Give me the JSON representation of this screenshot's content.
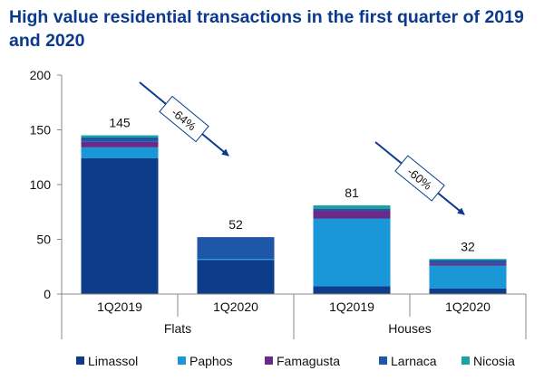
{
  "chart_data": {
    "type": "bar",
    "stacked": true,
    "title": "High value residential transactions in the first quarter of 2019 and 2020",
    "categories": [
      "1Q2019",
      "1Q2020",
      "1Q2019",
      "1Q2020"
    ],
    "groups": [
      {
        "label": "Flats",
        "categories": [
          0,
          1
        ]
      },
      {
        "label": "Houses",
        "categories": [
          2,
          3
        ]
      }
    ],
    "series": [
      {
        "name": "Limassol",
        "color": "#0d3c8a",
        "values": [
          124,
          31,
          7,
          5
        ]
      },
      {
        "name": "Paphos",
        "color": "#1a97d6",
        "values": [
          10,
          1,
          62,
          21
        ]
      },
      {
        "name": "Famagusta",
        "color": "#6a2a86",
        "values": [
          5,
          0,
          7,
          2
        ]
      },
      {
        "name": "Larnaca",
        "color": "#1f57a8",
        "values": [
          4,
          20,
          2,
          3
        ]
      },
      {
        "name": "Nicosia",
        "color": "#1aa3a3",
        "values": [
          2,
          0,
          3,
          1
        ]
      }
    ],
    "totals": [
      "145",
      "52",
      "81",
      "32"
    ],
    "annotations": [
      {
        "text": "-64%",
        "from": 0,
        "to": 1
      },
      {
        "text": "-60%",
        "from": 2,
        "to": 3
      }
    ],
    "ylim": [
      0,
      200
    ],
    "yticks": [
      0,
      50,
      100,
      150,
      200
    ],
    "grid": false,
    "legend_position": "bottom"
  }
}
